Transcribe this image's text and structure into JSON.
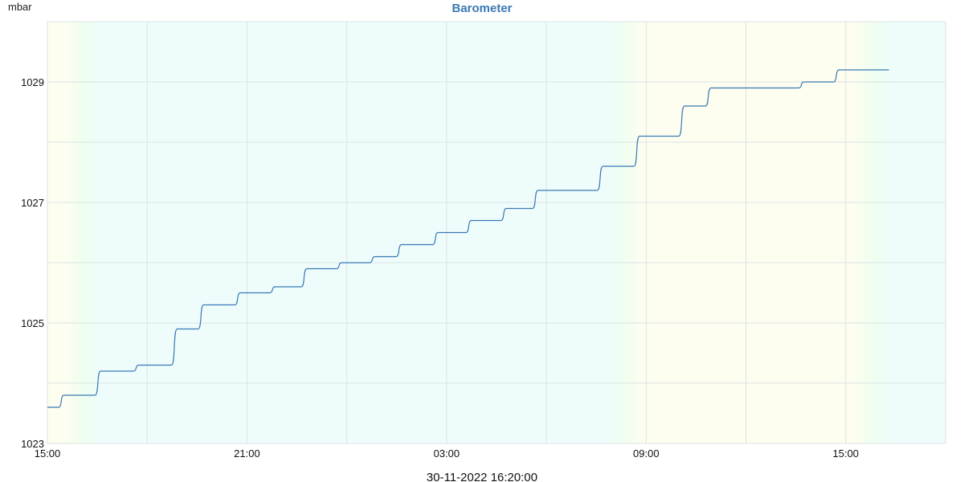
{
  "chart_data": {
    "type": "line",
    "title": "Barometer",
    "ylabel": "mbar",
    "timestamp": "30-11-2022 16:20:00",
    "x_unit": "hours since 15:00 (29-11-2022)",
    "xlim": [
      0,
      27
    ],
    "ylim": [
      1023,
      1030
    ],
    "x_ticks": [
      {
        "value": 0,
        "label": "15:00"
      },
      {
        "value": 6,
        "label": "21:00"
      },
      {
        "value": 12,
        "label": "03:00"
      },
      {
        "value": 18,
        "label": "09:00"
      },
      {
        "value": 24,
        "label": "15:00"
      }
    ],
    "y_ticks": [
      {
        "value": 1023,
        "label": "1023"
      },
      {
        "value": 1025,
        "label": "1025"
      },
      {
        "value": 1027,
        "label": "1027"
      },
      {
        "value": 1029,
        "label": "1029"
      }
    ],
    "grid": true,
    "colors": {
      "line": "#3a78b5",
      "title": "#3a78b5",
      "grid": "#dde3e3",
      "night_band": "#eefdfc",
      "day_band": "#fefef0"
    },
    "series": [
      {
        "name": "Barometer",
        "steps": [
          [
            0.0,
            1023.6
          ],
          [
            0.5,
            1023.8
          ],
          [
            1.6,
            1024.2
          ],
          [
            2.75,
            1024.3
          ],
          [
            3.9,
            1024.9
          ],
          [
            4.7,
            1025.3
          ],
          [
            5.8,
            1025.5
          ],
          [
            6.85,
            1025.6
          ],
          [
            7.8,
            1025.9
          ],
          [
            8.85,
            1026.0
          ],
          [
            9.85,
            1026.1
          ],
          [
            10.65,
            1026.3
          ],
          [
            11.75,
            1026.5
          ],
          [
            12.75,
            1026.7
          ],
          [
            13.8,
            1026.9
          ],
          [
            14.75,
            1027.2
          ],
          [
            16.7,
            1027.6
          ],
          [
            17.8,
            1028.1
          ],
          [
            19.15,
            1028.6
          ],
          [
            19.95,
            1028.9
          ],
          [
            22.75,
            1029.0
          ],
          [
            23.8,
            1029.2
          ],
          [
            25.3,
            1029.2
          ]
        ]
      }
    ]
  }
}
